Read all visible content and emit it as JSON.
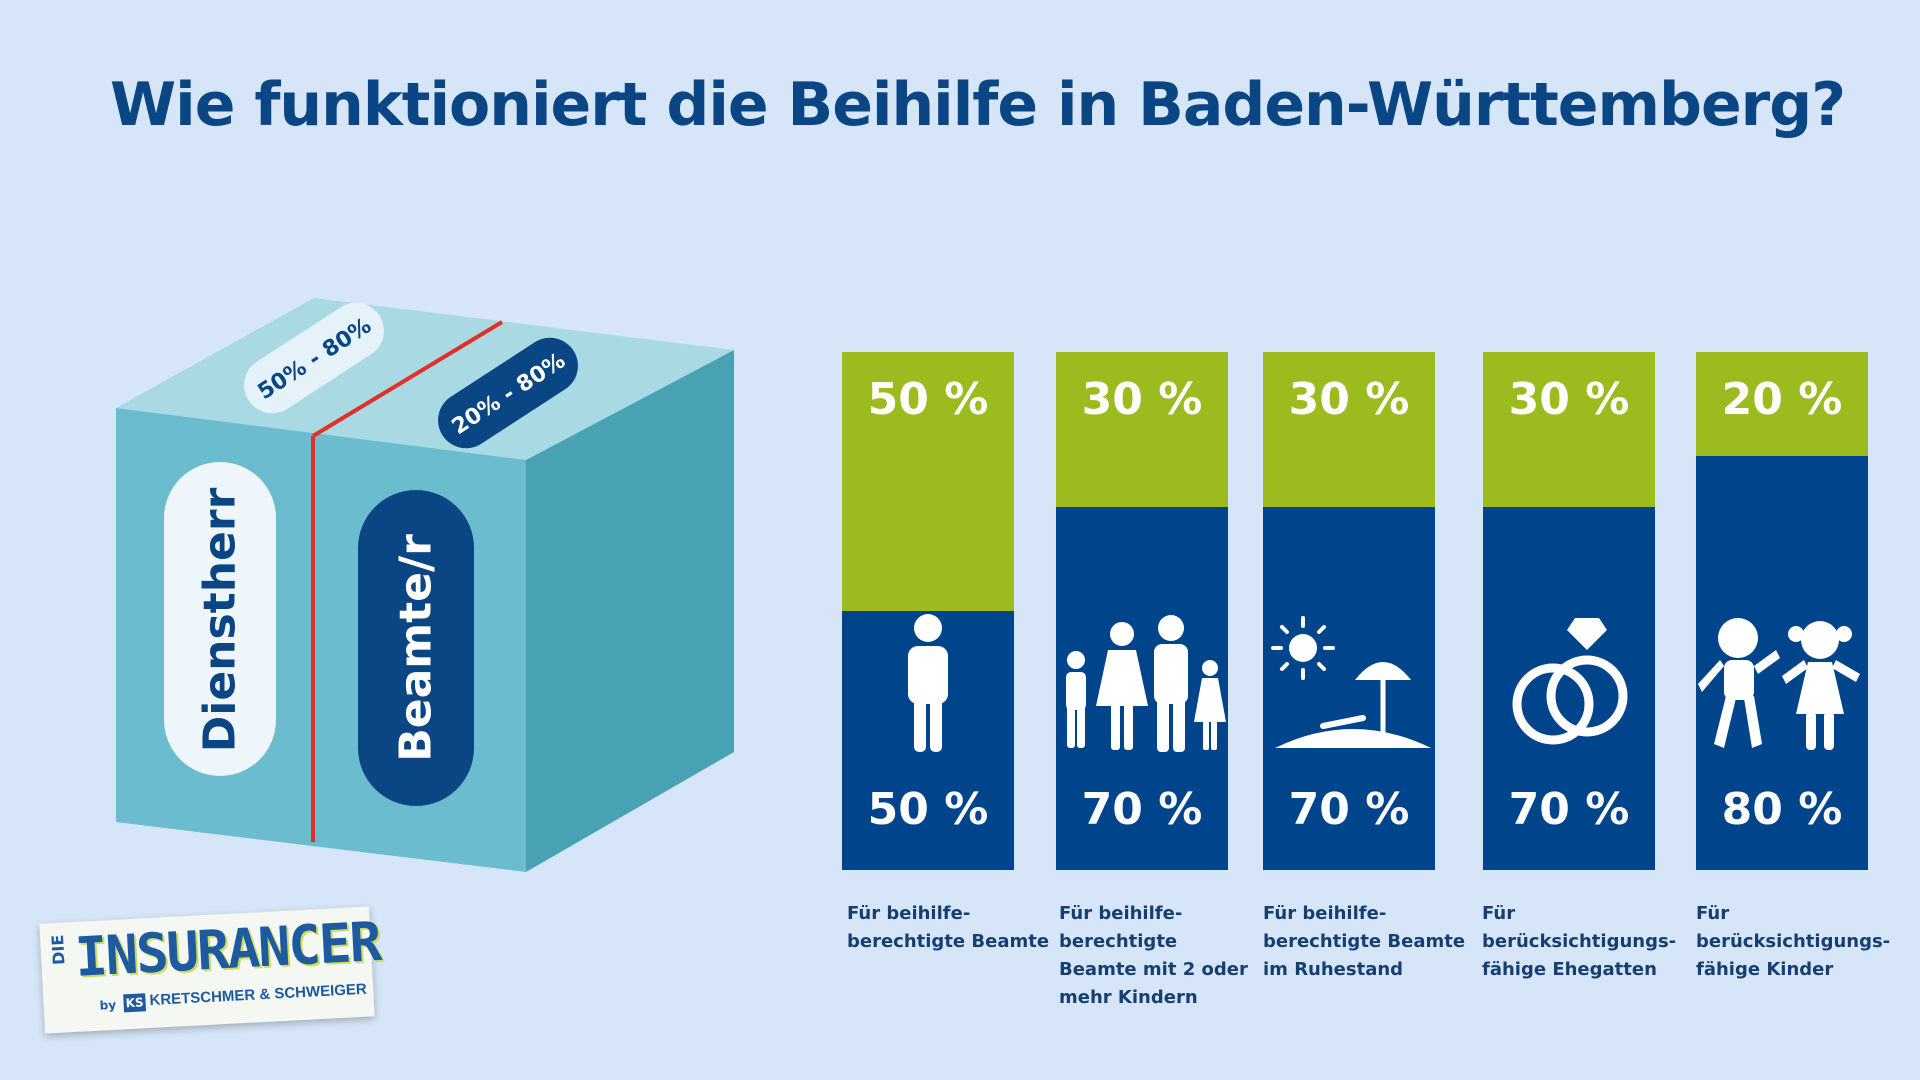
{
  "title": "Wie funktioniert die Beihilfe in Baden-Württemberg?",
  "cube": {
    "left_label": "Dienstherr",
    "right_label": "Beamte/r",
    "top_left_tag": "50% - 80%",
    "top_right_tag": "20% - 80%"
  },
  "colors": {
    "background": "#d6e6f8",
    "dark_blue": "#00458b",
    "green": "#9bbb1e",
    "cube_front": "#6cbccf",
    "cube_side": "#48a2b3",
    "cube_top": "#a9dae3",
    "red_line": "#e0302b"
  },
  "bars": [
    {
      "top_percent": 50,
      "top_label": "50 %",
      "bottom_label": "50 %",
      "icon": "person-icon",
      "caption": "Für beihilfe-\nberechtigte Beamte"
    },
    {
      "top_percent": 30,
      "top_label": "30 %",
      "bottom_label": "70 %",
      "icon": "family-icon",
      "caption": "Für beihilfe-\nberechtigte\nBeamte mit 2 oder\nmehr Kindern"
    },
    {
      "top_percent": 30,
      "top_label": "30 %",
      "bottom_label": "70 %",
      "icon": "beach-icon",
      "caption": "Für beihilfe-\nberechtigte Beamte\nim Ruhestand"
    },
    {
      "top_percent": 30,
      "top_label": "30 %",
      "bottom_label": "70 %",
      "icon": "rings-icon",
      "caption": "Für\nberücksichtigungs-\nfähige Ehegatten"
    },
    {
      "top_percent": 20,
      "top_label": "20 %",
      "bottom_label": "80 %",
      "icon": "children-icon",
      "caption": "Für\nberücksichtigungs-\nfähige Kinder"
    }
  ],
  "logo": {
    "prefix": "DIE",
    "main": "INSURANCER",
    "by": "by",
    "ks": "KS",
    "company": "KRETSCHMER & SCHWEIGER"
  }
}
